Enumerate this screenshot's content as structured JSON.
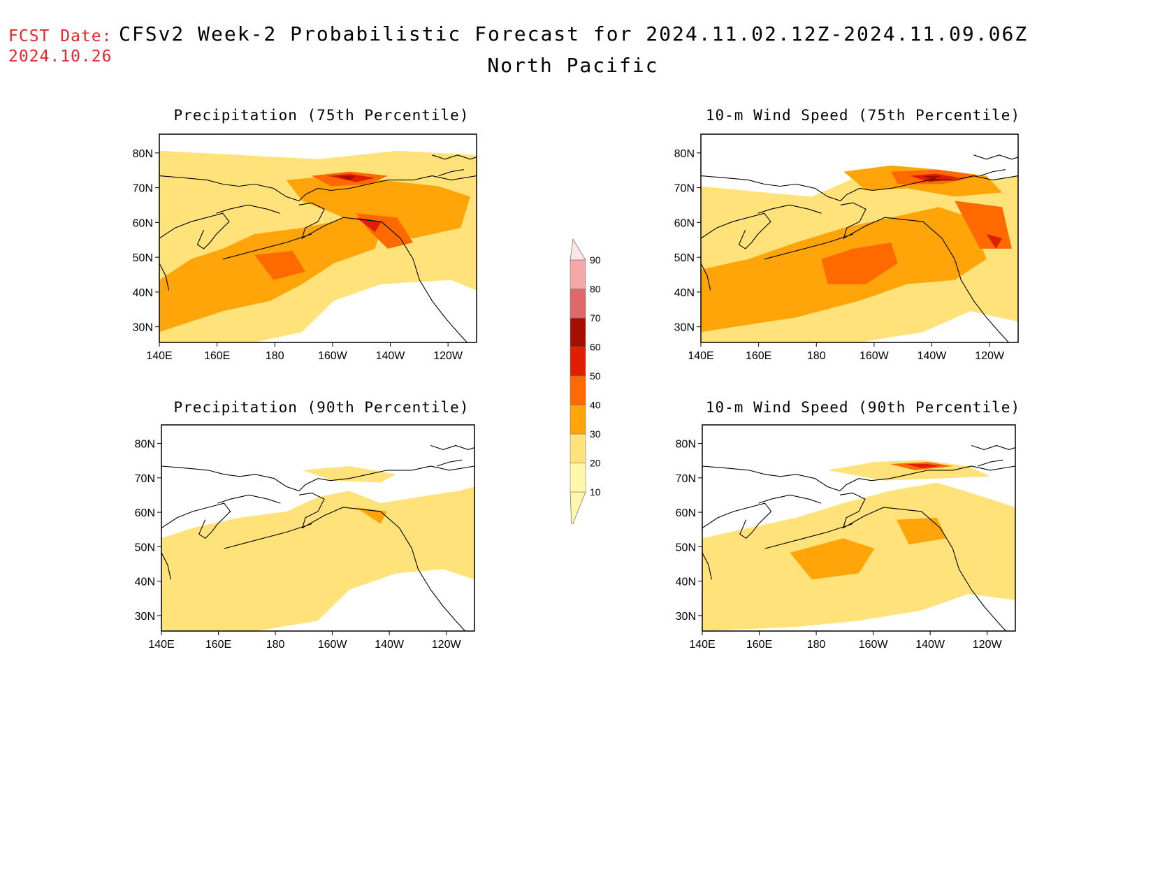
{
  "header": {
    "fcst_label": "FCST Date:",
    "fcst_date": "2024.10.26",
    "title": "CFSv2 Week-2 Probabilistic Forecast for 2024.11.02.12Z-2024.11.09.06Z",
    "subtitle": "North Pacific"
  },
  "axes": {
    "lon_ticks": [
      "140E",
      "160E",
      "180",
      "160W",
      "140W",
      "120W"
    ],
    "lat_ticks": [
      "80N",
      "70N",
      "60N",
      "50N",
      "40N",
      "30N"
    ]
  },
  "panels": [
    {
      "title": "Precipitation (75th Percentile)",
      "variable": "precipitation",
      "percentile": 75
    },
    {
      "title": "10-m Wind Speed (75th Percentile)",
      "variable": "wind_speed_10m",
      "percentile": 75
    },
    {
      "title": "Precipitation (90th Percentile)",
      "variable": "precipitation",
      "percentile": 90
    },
    {
      "title": "10-m Wind Speed (90th Percentile)",
      "variable": "wind_speed_10m",
      "percentile": 90
    }
  ],
  "colorbar": {
    "levels": [
      "10",
      "20",
      "30",
      "40",
      "50",
      "60",
      "70",
      "80",
      "90"
    ],
    "colors": [
      "#fff7aa",
      "#ffe27a",
      "#ffa50a",
      "#ff6a00",
      "#e01e00",
      "#a50f00",
      "#e06868",
      "#f4a8a8",
      "#ffe4e4"
    ]
  }
}
